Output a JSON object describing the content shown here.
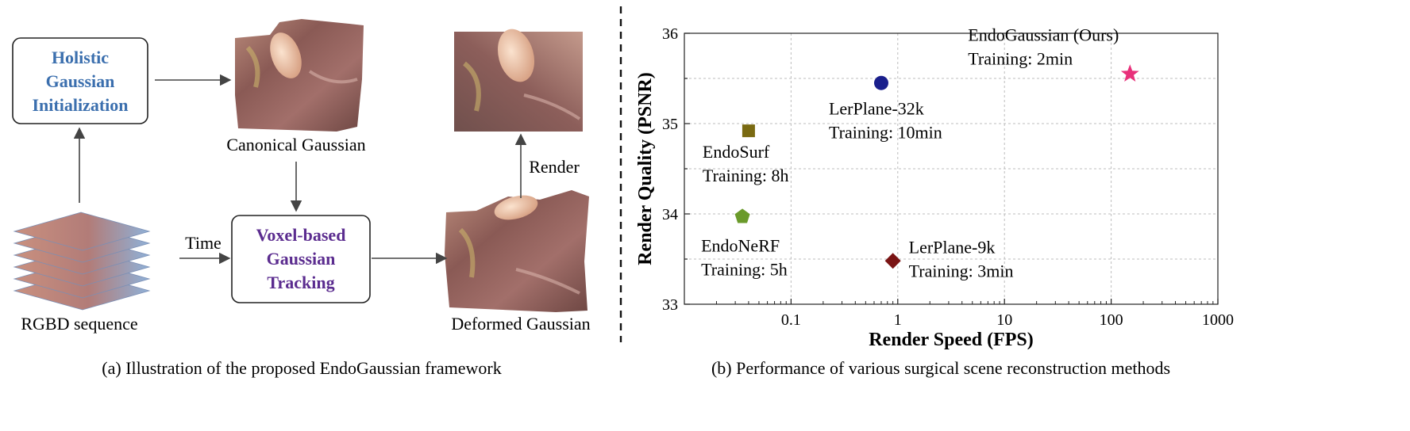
{
  "left_panel": {
    "box_init": {
      "lines": [
        "Holistic",
        "Gaussian",
        "Initialization"
      ],
      "color": "#3b6fae"
    },
    "box_track": {
      "lines": [
        "Voxel-based",
        "Gaussian",
        "Tracking"
      ],
      "color": "#5b2c8f"
    },
    "label_canonical": "Canonical Gaussian",
    "label_rgbd": "RGBD sequence",
    "label_time": "Time",
    "label_render": "Render",
    "label_deformed": "Deformed Gaussian",
    "caption": "(a) Illustration of the proposed EndoGaussian framework"
  },
  "right_panel": {
    "caption": "(b) Performance of various surgical scene reconstruction methods"
  },
  "chart_data": {
    "type": "scatter",
    "xlabel": "Render Speed (FPS)",
    "ylabel": "Render Quality (PSNR)",
    "x_scale": "log",
    "xlim": [
      0.01,
      1000
    ],
    "ylim": [
      33,
      36
    ],
    "x_ticks": [
      0.1,
      1,
      10,
      100,
      1000
    ],
    "x_tick_labels": [
      "0.1",
      "1",
      "10",
      "100",
      "1000"
    ],
    "y_ticks": [
      33,
      34,
      35,
      36
    ],
    "y_tick_labels": [
      "33",
      "34",
      "35",
      "36"
    ],
    "grid": true,
    "points": [
      {
        "name": "EndoGaussian (Ours)",
        "training": "Training: 2min",
        "x": 150,
        "y": 35.55,
        "marker": "star",
        "color": "#e8307a"
      },
      {
        "name": "LerPlane-32k",
        "training": "Training: 10min",
        "x": 0.7,
        "y": 35.45,
        "marker": "circle",
        "color": "#1a1f8c"
      },
      {
        "name": "EndoSurf",
        "training": "Training: 8h",
        "x": 0.04,
        "y": 34.92,
        "marker": "square",
        "color": "#7a6a12"
      },
      {
        "name": "EndoNeRF",
        "training": "Training: 5h",
        "x": 0.035,
        "y": 33.97,
        "marker": "pentagon",
        "color": "#6a9a2a"
      },
      {
        "name": "LerPlane-9k",
        "training": "Training: 3min",
        "x": 0.9,
        "y": 33.48,
        "marker": "diamond",
        "color": "#7a1414"
      }
    ]
  }
}
